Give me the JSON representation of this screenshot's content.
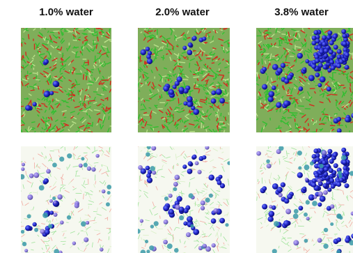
{
  "columns": [
    "1.0% water",
    "2.0% water",
    "3.8% water"
  ]
}
